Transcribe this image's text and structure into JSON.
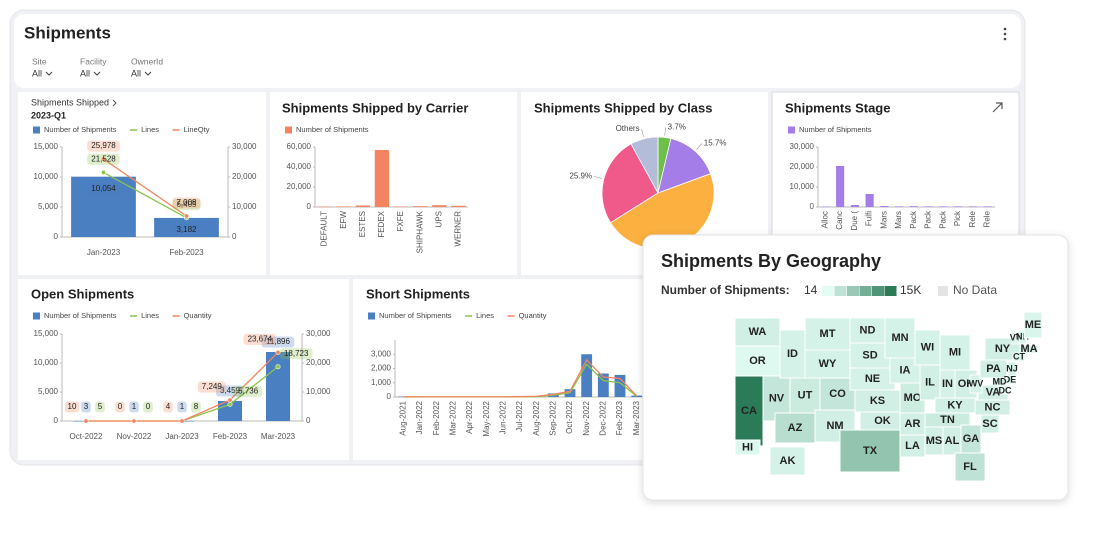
{
  "header": {
    "title": "Shipments",
    "filters": [
      {
        "label": "Site",
        "value": "All"
      },
      {
        "label": "Facility",
        "value": "All"
      },
      {
        "label": "OwnerId",
        "value": "All"
      }
    ]
  },
  "chart_data": [
    {
      "type": "combo",
      "title": "Shipments Shipped",
      "subtitle": "2023-Q1",
      "categories": [
        "Jan-2023",
        "Feb-2023"
      ],
      "series": [
        {
          "name": "Number of Shipments",
          "color": "#4a7fc1",
          "type": "bar",
          "values": [
            10054,
            3182
          ],
          "value_labels": [
            "10,054",
            "3,182"
          ]
        },
        {
          "name": "Lines",
          "color": "#8bc34a",
          "type": "line",
          "axis": "y2",
          "values": [
            21528,
            6405
          ],
          "value_labels": [
            "21,528",
            "6,405"
          ]
        },
        {
          "name": "LineQty",
          "color": "#f4845f",
          "type": "line",
          "axis": "y2",
          "values": [
            25978,
            7008
          ],
          "value_labels": [
            "25,978",
            "7,008"
          ]
        }
      ],
      "ylim": [
        0,
        15000
      ],
      "yticks": [
        0,
        {
          "value": 5000,
          "label": "5,000"
        },
        {
          "value": 10000,
          "label": "10,000"
        },
        {
          "value": 15000,
          "label": "15,000"
        }
      ],
      "y2lim": [
        0,
        30000
      ],
      "y2ticks": [
        0,
        {
          "value": 10000,
          "label": "10,000"
        },
        {
          "value": 20000,
          "label": "20,000"
        },
        {
          "value": 30000,
          "label": "30,000"
        }
      ],
      "legend": "top-left"
    },
    {
      "type": "bar",
      "title": "Shipments Shipped by Carrier",
      "categories": [
        "DEFAULT",
        "EFW",
        "ESTES",
        "FEDEX",
        "FXFE",
        "SHIPHAWK",
        "UPS",
        "WERNER"
      ],
      "series": [
        {
          "name": "Number of Shipments",
          "color": "#f4845f",
          "type": "bar",
          "values": [
            300,
            600,
            1500,
            57000,
            500,
            800,
            1800,
            1200
          ]
        }
      ],
      "ylim": [
        0,
        60000
      ],
      "yticks": [
        0,
        {
          "value": 20000,
          "label": "20,000"
        },
        {
          "value": 40000,
          "label": "40,000"
        },
        {
          "value": 60000,
          "label": "60,000"
        }
      ],
      "legend": "top-left"
    },
    {
      "type": "pie",
      "title": "Shipments Shipped by Class",
      "categories": [
        null,
        null,
        null,
        null,
        "Others"
      ],
      "values": [
        3.7,
        15.7,
        46.7,
        25.9,
        8.0
      ],
      "value_labels": [
        "3.7%",
        "15.7%",
        null,
        "25.9%",
        null
      ],
      "colors": [
        "#6cc04a",
        "#a47de8",
        "#fbb040",
        "#ef5a8a",
        "#b3bcd9"
      ]
    },
    {
      "type": "bar",
      "title": "Shipments Stage",
      "categories": [
        "Alloc",
        "Canc",
        "Due (",
        "Fulfi",
        "Mars",
        "Mars",
        "Pack",
        "Pack",
        "Pack",
        "Pick",
        "Rele",
        "Rele"
      ],
      "series": [
        {
          "name": "Number of Shipments",
          "color": "#a47de8",
          "type": "bar",
          "values": [
            200,
            20500,
            1000,
            6500,
            500,
            300,
            400,
            300,
            300,
            300,
            300,
            300
          ]
        }
      ],
      "ylim": [
        0,
        30000
      ],
      "yticks": [
        0,
        {
          "value": 10000,
          "label": "10,000"
        },
        {
          "value": 20000,
          "label": "20,000"
        },
        {
          "value": 30000,
          "label": "30,000"
        }
      ],
      "legend": "top-left"
    },
    {
      "type": "combo",
      "title": "Open Shipments",
      "categories": [
        "Oct-2022",
        "Nov-2022",
        "Jan-2023",
        "Feb-2023",
        "Mar-2023"
      ],
      "series": [
        {
          "name": "Number of Shipments",
          "color": "#4a7fc1",
          "type": "bar",
          "values": [
            3,
            1,
            1,
            3459,
            11896
          ],
          "value_labels": [
            "3",
            "1",
            "1",
            "3,459",
            "11,896"
          ]
        },
        {
          "name": "Lines",
          "color": "#8bc34a",
          "type": "line",
          "axis": "y2",
          "values": [
            5,
            0,
            8,
            5736,
            18723
          ],
          "value_labels": [
            "5",
            "0",
            "8",
            "5,736",
            "18,723"
          ]
        },
        {
          "name": "Quantity",
          "color": "#f4845f",
          "type": "line",
          "axis": "y2",
          "values": [
            10,
            0,
            4,
            7249,
            23674
          ],
          "value_labels": [
            "10",
            "0",
            "4",
            "7,249",
            "23,674"
          ]
        }
      ],
      "ylim": [
        0,
        15000
      ],
      "yticks": [
        0,
        {
          "value": 5000,
          "label": "5,000"
        },
        {
          "value": 10000,
          "label": "10,000"
        },
        {
          "value": 15000,
          "label": "15,000"
        }
      ],
      "y2lim": [
        0,
        30000
      ],
      "y2ticks": [
        0,
        {
          "value": 10000,
          "label": "10,000"
        },
        {
          "value": 20000,
          "label": "20,000"
        },
        {
          "value": 30000,
          "label": "30,000"
        }
      ],
      "legend": "top-left"
    },
    {
      "type": "combo",
      "title": "Short Shipments",
      "categories": [
        "Aug-2021",
        "Jan-2022",
        "Feb-2022",
        "Mar-2022",
        "Apr-2022",
        "May-2022",
        "Jun-2022",
        "Jul-2022",
        "Aug-2022",
        "Sep-2022",
        "Oct-2022",
        "Nov-2022",
        "Dec-2022",
        "Feb-2023",
        "Mar-2023"
      ],
      "series": [
        {
          "name": "Number of Shipments",
          "color": "#4a7fc1",
          "type": "bar",
          "values": [
            30,
            20,
            20,
            20,
            20,
            20,
            20,
            40,
            60,
            250,
            550,
            3000,
            1650,
            1550,
            100
          ]
        },
        {
          "name": "Lines",
          "color": "#8bc34a",
          "type": "line",
          "values": [
            15,
            10,
            10,
            10,
            10,
            10,
            10,
            20,
            30,
            120,
            300,
            2300,
            1150,
            1000,
            50
          ]
        },
        {
          "name": "Quantity",
          "color": "#f4845f",
          "type": "line",
          "values": [
            20,
            15,
            15,
            15,
            15,
            15,
            15,
            30,
            50,
            180,
            400,
            2600,
            1400,
            1300,
            80
          ]
        }
      ],
      "ylim": [
        0,
        4000
      ],
      "yticks": [
        0,
        {
          "value": 1000,
          "label": "1,000"
        },
        {
          "value": 2000,
          "label": "2,000"
        },
        {
          "value": 3000,
          "label": "3,000"
        }
      ],
      "legend": "top-left"
    },
    {
      "type": "map",
      "title": "Shipments By Geography",
      "legend_title": "Number of Shipments:",
      "scale": {
        "min": {
          "value": 14,
          "label": "14"
        },
        "max": {
          "value": 15000,
          "label": "15K"
        }
      },
      "no_data_label": "No Data",
      "colors": [
        "#e3fcf4",
        "#2b7a58"
      ],
      "no_data_color": "#e4e4e4",
      "states": [
        "WA",
        "OR",
        "CA",
        "NV",
        "ID",
        "MT",
        "WY",
        "UT",
        "AZ",
        "CO",
        "NM",
        "ND",
        "SD",
        "NE",
        "KS",
        "OK",
        "TX",
        "MN",
        "IA",
        "MO",
        "AR",
        "LA",
        "WI",
        "IL",
        "MI",
        "IN",
        "OH",
        "KY",
        "TN",
        "MS",
        "AL",
        "GA",
        "FL",
        "SC",
        "NC",
        "VA",
        "WV",
        "PA",
        "NY",
        "VT",
        "NH",
        "ME",
        "MA",
        "CT",
        "NJ",
        "DE",
        "MD",
        "DC",
        "AK",
        "HI"
      ],
      "values": [
        1500,
        400,
        15000,
        2500,
        1200,
        1200,
        1200,
        2000,
        3500,
        2500,
        1500,
        1200,
        1200,
        1200,
        1500,
        1500,
        6500,
        1200,
        1200,
        1800,
        1500,
        1500,
        1200,
        1500,
        1200,
        1200,
        1500,
        1500,
        2000,
        1500,
        1500,
        2500,
        3000,
        1500,
        1500,
        1500,
        1200,
        1500,
        1500,
        800,
        800,
        800,
        1200,
        800,
        1200,
        800,
        1200,
        800,
        1200,
        600
      ]
    }
  ]
}
